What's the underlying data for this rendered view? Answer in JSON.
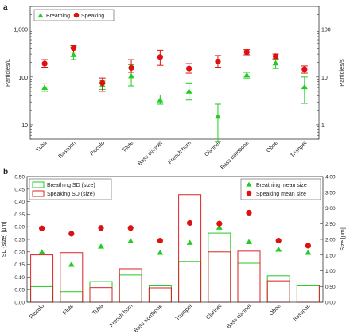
{
  "panel_labels": {
    "a": "a",
    "b": "b"
  },
  "chart_data": [
    {
      "type": "scatter",
      "panel": "a",
      "categories": [
        "Tuba",
        "Bassoon",
        "Piccolo",
        "Flute",
        "Bass clarinet",
        "French horn",
        "Clarinet",
        "Bass trombone",
        "Oboe",
        "Trumpet"
      ],
      "ylabel": "Particles/L",
      "y2label": "Particles/s",
      "yscale": "log",
      "ylim": [
        5,
        3000
      ],
      "y2lim": [
        0.5,
        300
      ],
      "yticks": [
        10,
        100,
        1000
      ],
      "yticklabels": [
        "10",
        "100",
        "1,000"
      ],
      "y2ticks": [
        1,
        10,
        100
      ],
      "y2ticklabels": [
        "1",
        "10",
        "100"
      ],
      "legend": {
        "position": "top-left"
      },
      "series": [
        {
          "name": "Breathing",
          "marker": "triangle",
          "color": "#22cc22",
          "values": [
            60,
            290,
            68,
            105,
            33,
            50,
            15,
            110,
            195,
            62
          ],
          "err_low": [
            50,
            230,
            55,
            65,
            27,
            33,
            4.5,
            95,
            150,
            28
          ],
          "err_high": [
            72,
            420,
            85,
            180,
            42,
            75,
            27,
            125,
            230,
            100
          ]
        },
        {
          "name": "Speaking",
          "marker": "circle",
          "color": "#dd1111",
          "values": [
            190,
            400,
            75,
            155,
            260,
            150,
            210,
            330,
            270,
            145
          ],
          "err_low": [
            160,
            330,
            50,
            125,
            175,
            120,
            160,
            290,
            240,
            120
          ],
          "err_high": [
            230,
            450,
            95,
            230,
            360,
            190,
            280,
            370,
            300,
            170
          ]
        }
      ]
    },
    {
      "type": "bar",
      "panel": "b",
      "categories": [
        "Piccolo",
        "Flute",
        "Tuba",
        "French horn",
        "Bass trombone",
        "Trumpet",
        "Clarinet",
        "Bass clarinet",
        "Oboe",
        "Bassoon"
      ],
      "ylabel": "SD (size) [μm]",
      "y2label": "Size [μm]",
      "ylim": [
        0,
        0.5
      ],
      "y2lim": [
        0,
        4
      ],
      "yticks": [
        0.0,
        0.05,
        0.1,
        0.15,
        0.2,
        0.25,
        0.3,
        0.35,
        0.4,
        0.45,
        0.5
      ],
      "yticklabels": [
        "0.00",
        "0.05",
        "0.10",
        "0.15",
        "0.20",
        "0.25",
        "0.30",
        "0.35",
        "0.40",
        "0.45",
        "0.50"
      ],
      "y2ticks": [
        0,
        0.5,
        1,
        1.5,
        2,
        2.5,
        3,
        3.5,
        4
      ],
      "y2ticklabels": [
        "0.00",
        "0.50",
        "1.00",
        "1.50",
        "2.00",
        "2.50",
        "3.00",
        "3.50",
        "4.00"
      ],
      "legend_left": {
        "position": "top-left"
      },
      "legend_right": {
        "position": "top-right"
      },
      "bar_series": [
        {
          "name": "Breathing SD (size)",
          "color": "#22cc22",
          "values": [
            0.062,
            0.042,
            0.082,
            0.108,
            0.065,
            0.162,
            0.275,
            0.155,
            0.105,
            0.065
          ]
        },
        {
          "name": "Speaking SD (size)",
          "color": "#dd2222",
          "values": [
            0.188,
            0.197,
            0.058,
            0.133,
            0.057,
            0.428,
            0.2,
            0.203,
            0.085,
            0.068
          ]
        }
      ],
      "point_series": [
        {
          "name": "Breathing mean size",
          "marker": "triangle",
          "color": "#22cc22",
          "values": [
            1.6,
            1.2,
            1.78,
            1.95,
            1.58,
            1.9,
            2.38,
            1.92,
            1.68,
            1.58
          ]
        },
        {
          "name": "Speaking mean size",
          "marker": "circle",
          "color": "#dd1111",
          "values": [
            2.35,
            2.18,
            2.36,
            2.36,
            1.96,
            2.52,
            2.5,
            2.85,
            1.96,
            1.8
          ]
        }
      ]
    }
  ]
}
